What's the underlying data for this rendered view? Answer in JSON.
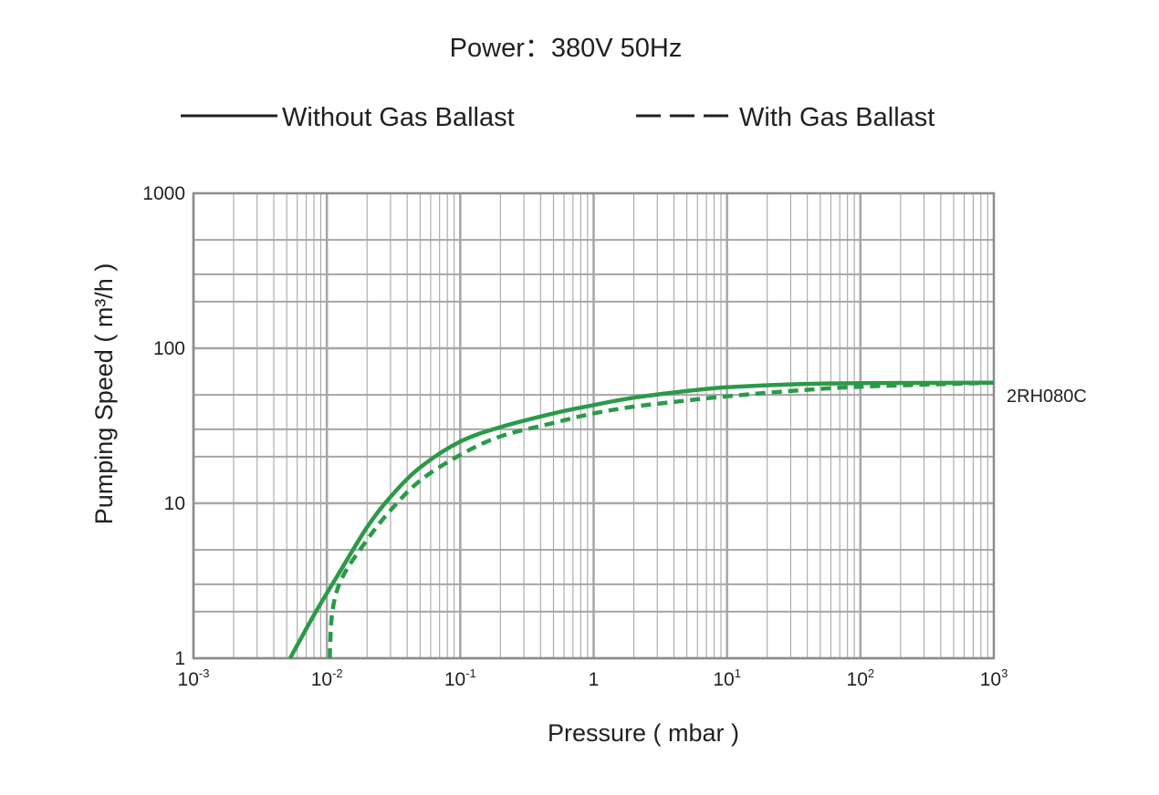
{
  "chart_data": {
    "type": "line",
    "title": "Power：380V 50Hz",
    "xlabel": "Pressure ( mbar )",
    "ylabel": "Pumping Speed ( m³/h )",
    "x_scale": "log",
    "y_scale": "log",
    "xlim": [
      0.001,
      1000
    ],
    "ylim": [
      1,
      1000
    ],
    "grid": true,
    "legend_placement": "top",
    "x_ticks": [
      {
        "base": "10",
        "exp": "-3",
        "value": 0.001
      },
      {
        "base": "10",
        "exp": "-2",
        "value": 0.01
      },
      {
        "base": "10",
        "exp": "-1",
        "value": 0.1
      },
      {
        "base": "1",
        "exp": "",
        "value": 1
      },
      {
        "base": "10",
        "exp": "1",
        "value": 10
      },
      {
        "base": "10",
        "exp": "2",
        "value": 100
      },
      {
        "base": "10",
        "exp": "3",
        "value": 1000
      }
    ],
    "y_ticks": [
      {
        "label": "1",
        "value": 1
      },
      {
        "label": "10",
        "value": 10
      },
      {
        "label": "100",
        "value": 100
      },
      {
        "label": "1000",
        "value": 1000
      }
    ],
    "series_color": "#2b9a48",
    "curve_label": "2RH080C",
    "legend": [
      {
        "label": "Without Gas Ballast",
        "style": "solid"
      },
      {
        "label": "With Gas Ballast",
        "style": "dashed"
      }
    ],
    "series": [
      {
        "name": "Without Gas Ballast",
        "style": "solid",
        "points": [
          [
            0.0053,
            1
          ],
          [
            0.008,
            1.9
          ],
          [
            0.012,
            3.4
          ],
          [
            0.02,
            7.0
          ],
          [
            0.03,
            11
          ],
          [
            0.05,
            17
          ],
          [
            0.1,
            25
          ],
          [
            0.2,
            31
          ],
          [
            0.5,
            38
          ],
          [
            1,
            43
          ],
          [
            2,
            48
          ],
          [
            5,
            53
          ],
          [
            10,
            56
          ],
          [
            30,
            58.5
          ],
          [
            100,
            59.5
          ],
          [
            1000,
            60
          ]
        ]
      },
      {
        "name": "With Gas Ballast",
        "style": "dashed",
        "points": [
          [
            0.0105,
            1
          ],
          [
            0.011,
            2.0
          ],
          [
            0.013,
            3.3
          ],
          [
            0.02,
            5.8
          ],
          [
            0.03,
            9
          ],
          [
            0.05,
            14
          ],
          [
            0.1,
            20.5
          ],
          [
            0.2,
            27
          ],
          [
            0.5,
            33
          ],
          [
            1,
            38
          ],
          [
            2,
            42
          ],
          [
            5,
            46
          ],
          [
            10,
            49
          ],
          [
            30,
            53
          ],
          [
            100,
            56.5
          ],
          [
            1000,
            60
          ]
        ]
      }
    ]
  }
}
